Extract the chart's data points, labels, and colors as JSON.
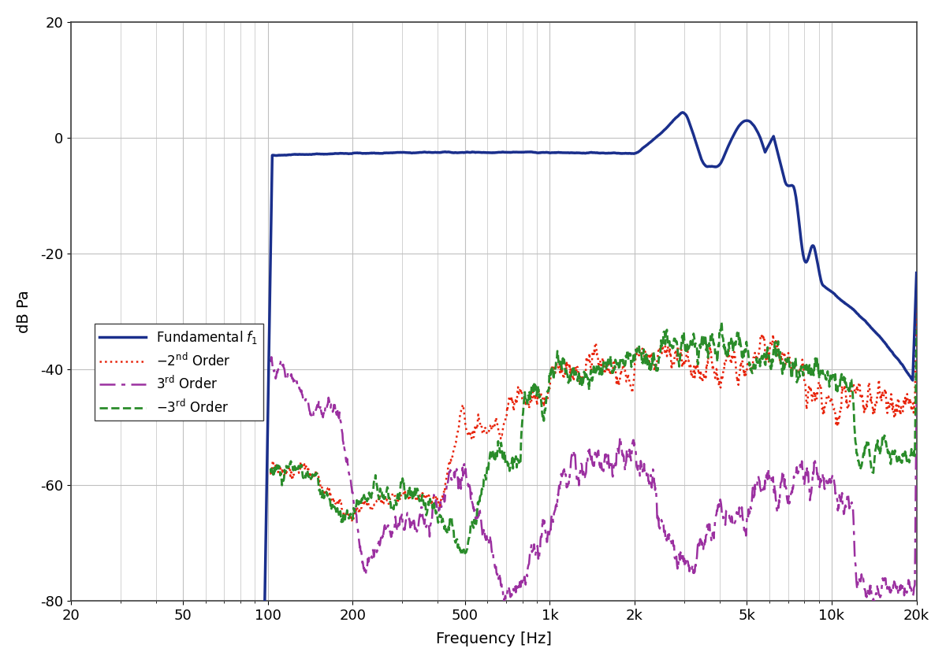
{
  "title": "",
  "xlabel": "Frequency [Hz]",
  "ylabel": "dB Pa",
  "xlim": [
    20,
    20000
  ],
  "ylim": [
    -80,
    20
  ],
  "yticks": [
    -80,
    -60,
    -40,
    -20,
    0,
    20
  ],
  "xtick_labels": [
    "20",
    "50",
    "100",
    "200",
    "500",
    "1k",
    "2k",
    "5k",
    "10k",
    "20k"
  ],
  "xtick_values": [
    20,
    50,
    100,
    200,
    500,
    1000,
    2000,
    5000,
    10000,
    20000
  ],
  "colors": {
    "fundamental": "#1a2f8c",
    "neg2nd": "#e8230a",
    "3rd": "#9b30a0",
    "neg3rd": "#2a8c2a"
  },
  "background": "#ffffff",
  "grid_color": "#c0c0c0",
  "legend_fundamental": "Fundamental $f_1$",
  "legend_neg2nd": "$-2^{\\rm nd}$ Order",
  "legend_3rd": "$3^{\\rm rd}$ Order",
  "legend_neg3rd": "$-3^{\\rm rd}$ Order"
}
